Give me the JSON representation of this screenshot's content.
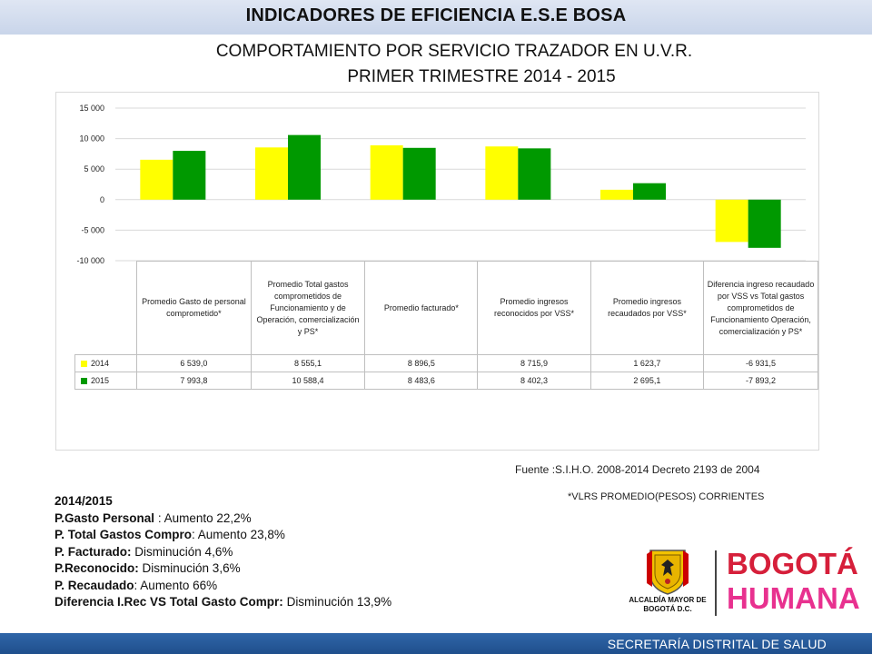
{
  "header": {
    "title": "INDICADORES DE EFICIENCIA E.S.E BOSA"
  },
  "subtitle": {
    "line1": "COMPORTAMIENTO POR SERVICIO TRAZADOR EN U.V.R.",
    "line2": "PRIMER TRIMESTRE 2014 - 2015"
  },
  "colors": {
    "series_2014": "#ffff00",
    "series_2015": "#009900",
    "header_bar": "#d4ddef",
    "footer_bar": "#2a5d9f"
  },
  "chart_data": {
    "type": "bar",
    "title": "",
    "xlabel": "",
    "ylabel": "",
    "ylim": [
      -10000,
      15000
    ],
    "yticks": [
      "-10 000",
      "-5 000",
      "0",
      "5 000",
      "10 000",
      "15 000"
    ],
    "ytick_values": [
      -10000,
      -5000,
      0,
      5000,
      10000,
      15000
    ],
    "grid": true,
    "legend_placement": "data table",
    "categories": [
      "Promedio Gasto de personal comprometido*",
      "Promedio Total gastos comprometidos de Funcionamiento y de Operación, comercialización y PS*",
      "Promedio facturado*",
      "Promedio ingresos reconocidos por VSS*",
      "Promedio ingresos recaudados por VSS*",
      "Diferencia ingreso recaudado por VSS vs Total gastos comprometidos de Funcionamiento Operación, comercialización y PS*"
    ],
    "series": [
      {
        "name": "2014",
        "values": [
          6539.0,
          8555.1,
          8896.5,
          8715.9,
          1623.7,
          -6931.5
        ],
        "labels": [
          "6 539,0",
          "8 555,1",
          "8 896,5",
          "8 715,9",
          "1 623,7",
          "-6 931,5"
        ]
      },
      {
        "name": "2015",
        "values": [
          7993.8,
          10588.4,
          8483.6,
          8402.3,
          2695.1,
          -7893.2
        ],
        "labels": [
          "7 993,8",
          "10 588,4",
          "8 483,6",
          "8 402,3",
          "2 695,1",
          "-7 893,2"
        ]
      }
    ]
  },
  "source": "Fuente :S.I.H.O. 2008-2014  Decreto 2193 de 2004",
  "note": "*VLRS PROMEDIO(PESOS) CORRIENTES",
  "summary": {
    "heading": "2014/2015",
    "items": [
      {
        "label": "P.Gasto Personal",
        "sep": " : ",
        "text": "Aumento 22,2%"
      },
      {
        "label": "P. Total Gastos Compro",
        "sep": ": ",
        "text": "Aumento 23,8%"
      },
      {
        "label": "P. Facturado:",
        "sep": " ",
        "text": "Disminución 4,6%"
      },
      {
        "label": "P.Reconocido:",
        "sep": " ",
        "text": "Disminución 3,6%"
      },
      {
        "label": "P. Recaudado",
        "sep": ":  ",
        "text": "Aumento 66%"
      },
      {
        "label": "Diferencia I.Rec VS Total Gasto Compr:",
        "sep": " ",
        "text": "Disminución 13,9%"
      }
    ]
  },
  "logos": {
    "alcaldia": "ALCALDÍA MAYOR DE BOGOTÁ D.C.",
    "bogota_line1": "BOGOTÁ",
    "bogota_line2": "HUMANA",
    "shield_icon": "bogota-coat-of-arms-icon"
  },
  "footer": {
    "text": "SECRETARÍA DISTRITAL DE SALUD"
  }
}
